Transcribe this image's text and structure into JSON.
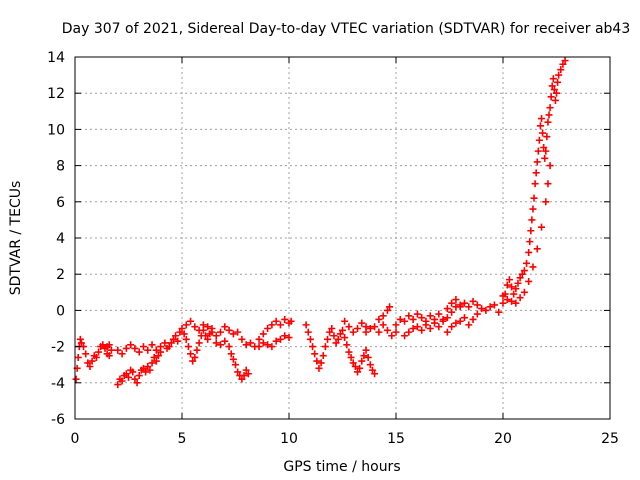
{
  "chart_data": {
    "type": "scatter",
    "title": "Day 307 of 2021, Sidereal Day-to-day VTEC variation (SDTVAR) for receiver ab43",
    "xlabel": "GPS time / hours",
    "ylabel": "SDTVAR / TECUs",
    "xlim": [
      0,
      25
    ],
    "ylim": [
      -6,
      14
    ],
    "xticks": [
      0,
      5,
      10,
      15,
      20,
      25
    ],
    "yticks": [
      -6,
      -4,
      -2,
      0,
      2,
      4,
      6,
      8,
      10,
      12,
      14
    ],
    "grid": true,
    "marker": "+",
    "series_color": "#ff0000",
    "series": [
      {
        "name": "SDTVAR",
        "points": [
          [
            0.05,
            -3.8
          ],
          [
            0.1,
            -3.2
          ],
          [
            0.15,
            -2.6
          ],
          [
            0.2,
            -2.0
          ],
          [
            0.25,
            -1.6
          ],
          [
            0.3,
            -1.8
          ],
          [
            0.4,
            -2.0
          ],
          [
            0.5,
            -2.4
          ],
          [
            0.6,
            -2.9
          ],
          [
            0.7,
            -3.1
          ],
          [
            0.8,
            -2.8
          ],
          [
            0.9,
            -2.5
          ],
          [
            1.0,
            -2.6
          ],
          [
            1.1,
            -2.3
          ],
          [
            1.2,
            -2.0
          ],
          [
            1.3,
            -1.9
          ],
          [
            1.4,
            -2.1
          ],
          [
            1.5,
            -2.0
          ],
          [
            1.6,
            -1.9
          ],
          [
            1.7,
            -2.2
          ],
          [
            1.6,
            -2.5
          ],
          [
            1.5,
            -2.4
          ],
          [
            2.0,
            -4.1
          ],
          [
            2.1,
            -3.8
          ],
          [
            2.2,
            -3.9
          ],
          [
            2.3,
            -3.6
          ],
          [
            2.4,
            -3.5
          ],
          [
            2.5,
            -3.7
          ],
          [
            2.6,
            -3.3
          ],
          [
            2.7,
            -3.4
          ],
          [
            2.8,
            -3.8
          ],
          [
            2.9,
            -4.0
          ],
          [
            3.0,
            -3.6
          ],
          [
            3.1,
            -3.3
          ],
          [
            3.2,
            -3.2
          ],
          [
            3.3,
            -3.4
          ],
          [
            3.4,
            -3.1
          ],
          [
            3.5,
            -3.3
          ],
          [
            3.6,
            -2.9
          ],
          [
            3.7,
            -2.6
          ],
          [
            3.8,
            -2.8
          ],
          [
            3.9,
            -2.5
          ],
          [
            4.0,
            -2.3
          ],
          [
            2.0,
            -2.2
          ],
          [
            2.2,
            -2.4
          ],
          [
            2.4,
            -2.1
          ],
          [
            2.6,
            -1.9
          ],
          [
            2.8,
            -2.1
          ],
          [
            3.0,
            -2.3
          ],
          [
            3.2,
            -2.0
          ],
          [
            3.4,
            -2.2
          ],
          [
            3.6,
            -1.9
          ],
          [
            3.8,
            -2.2
          ],
          [
            4.0,
            -2.0
          ],
          [
            4.2,
            -1.8
          ],
          [
            4.3,
            -2.1
          ],
          [
            4.4,
            -2.0
          ],
          [
            4.5,
            -1.8
          ],
          [
            4.6,
            -1.6
          ],
          [
            4.7,
            -1.4
          ],
          [
            4.8,
            -1.7
          ],
          [
            4.9,
            -1.2
          ],
          [
            5.0,
            -1.0
          ],
          [
            5.1,
            -1.3
          ],
          [
            5.2,
            -1.6
          ],
          [
            5.3,
            -2.0
          ],
          [
            5.4,
            -2.4
          ],
          [
            5.5,
            -2.8
          ],
          [
            5.6,
            -2.6
          ],
          [
            5.7,
            -2.2
          ],
          [
            5.8,
            -1.8
          ],
          [
            5.9,
            -1.4
          ],
          [
            6.0,
            -1.1
          ],
          [
            6.1,
            -1.4
          ],
          [
            6.2,
            -1.6
          ],
          [
            6.3,
            -1.3
          ],
          [
            6.4,
            -1.0
          ],
          [
            5.2,
            -0.8
          ],
          [
            5.4,
            -0.6
          ],
          [
            5.6,
            -0.9
          ],
          [
            5.8,
            -1.1
          ],
          [
            6.0,
            -0.8
          ],
          [
            6.2,
            -0.9
          ],
          [
            6.4,
            -1.2
          ],
          [
            6.6,
            -1.4
          ],
          [
            6.8,
            -1.2
          ],
          [
            7.0,
            -0.9
          ],
          [
            7.2,
            -1.1
          ],
          [
            7.4,
            -1.3
          ],
          [
            6.6,
            -1.8
          ],
          [
            6.8,
            -1.9
          ],
          [
            7.0,
            -1.7
          ],
          [
            7.2,
            -2.0
          ],
          [
            7.3,
            -2.4
          ],
          [
            7.4,
            -2.7
          ],
          [
            7.5,
            -3.0
          ],
          [
            7.6,
            -3.4
          ],
          [
            7.7,
            -3.6
          ],
          [
            7.8,
            -3.8
          ],
          [
            7.9,
            -3.6
          ],
          [
            8.0,
            -3.3
          ],
          [
            8.1,
            -3.5
          ],
          [
            7.6,
            -1.2
          ],
          [
            7.8,
            -1.6
          ],
          [
            8.0,
            -1.9
          ],
          [
            8.2,
            -1.8
          ],
          [
            8.4,
            -2.0
          ],
          [
            8.6,
            -1.6
          ],
          [
            8.8,
            -1.3
          ],
          [
            9.0,
            -1.0
          ],
          [
            9.2,
            -0.8
          ],
          [
            9.4,
            -0.6
          ],
          [
            9.6,
            -0.8
          ],
          [
            9.8,
            -0.5
          ],
          [
            10.0,
            -0.7
          ],
          [
            10.1,
            -0.6
          ],
          [
            8.6,
            -2.0
          ],
          [
            8.8,
            -1.8
          ],
          [
            9.0,
            -1.9
          ],
          [
            9.2,
            -2.0
          ],
          [
            9.4,
            -1.7
          ],
          [
            9.6,
            -1.6
          ],
          [
            9.8,
            -1.4
          ],
          [
            10.0,
            -1.5
          ],
          [
            10.8,
            -0.8
          ],
          [
            10.9,
            -1.2
          ],
          [
            11.0,
            -1.6
          ],
          [
            11.1,
            -2.0
          ],
          [
            11.2,
            -2.4
          ],
          [
            11.3,
            -2.8
          ],
          [
            11.4,
            -3.2
          ],
          [
            11.5,
            -2.9
          ],
          [
            11.6,
            -2.5
          ],
          [
            11.7,
            -2.0
          ],
          [
            11.8,
            -1.6
          ],
          [
            11.9,
            -1.2
          ],
          [
            12.0,
            -1.0
          ],
          [
            12.1,
            -1.4
          ],
          [
            12.2,
            -1.8
          ],
          [
            12.3,
            -1.6
          ],
          [
            12.4,
            -1.3
          ],
          [
            12.5,
            -1.1
          ],
          [
            12.6,
            -1.5
          ],
          [
            12.7,
            -1.9
          ],
          [
            12.8,
            -2.3
          ],
          [
            12.9,
            -2.6
          ],
          [
            13.0,
            -2.9
          ],
          [
            13.1,
            -3.1
          ],
          [
            13.2,
            -3.4
          ],
          [
            13.3,
            -3.2
          ],
          [
            13.4,
            -2.8
          ],
          [
            13.5,
            -2.5
          ],
          [
            13.6,
            -2.2
          ],
          [
            13.7,
            -2.6
          ],
          [
            13.8,
            -3.0
          ],
          [
            13.9,
            -3.3
          ],
          [
            14.0,
            -3.5
          ],
          [
            13.6,
            -1.2
          ],
          [
            13.8,
            -1.0
          ],
          [
            14.0,
            -0.9
          ],
          [
            14.2,
            -1.2
          ],
          [
            14.4,
            -0.8
          ],
          [
            14.6,
            -1.1
          ],
          [
            14.8,
            -1.4
          ],
          [
            15.0,
            -1.2
          ],
          [
            12.6,
            -0.6
          ],
          [
            12.8,
            -0.9
          ],
          [
            13.0,
            -1.2
          ],
          [
            13.2,
            -1.0
          ],
          [
            13.4,
            -0.7
          ],
          [
            13.6,
            -0.9
          ],
          [
            14.2,
            -0.5
          ],
          [
            14.4,
            -0.3
          ],
          [
            14.6,
            0.0
          ],
          [
            14.7,
            0.2
          ],
          [
            15.0,
            -0.8
          ],
          [
            15.2,
            -0.5
          ],
          [
            15.4,
            -0.6
          ],
          [
            15.6,
            -0.3
          ],
          [
            15.8,
            -0.5
          ],
          [
            16.0,
            -0.2
          ],
          [
            16.2,
            -0.4
          ],
          [
            16.4,
            -0.6
          ],
          [
            16.6,
            -0.3
          ],
          [
            16.8,
            -0.5
          ],
          [
            17.0,
            -0.2
          ],
          [
            17.2,
            -0.5
          ],
          [
            17.4,
            0.1
          ],
          [
            17.6,
            0.4
          ],
          [
            17.8,
            0.6
          ],
          [
            18.0,
            0.2
          ],
          [
            18.2,
            -0.4
          ],
          [
            18.4,
            -0.8
          ],
          [
            18.6,
            -0.5
          ],
          [
            18.8,
            -0.2
          ],
          [
            15.4,
            -1.4
          ],
          [
            15.6,
            -1.2
          ],
          [
            15.8,
            -1.0
          ],
          [
            16.0,
            -0.9
          ],
          [
            16.2,
            -1.1
          ],
          [
            16.4,
            -0.8
          ],
          [
            16.6,
            -1.0
          ],
          [
            16.8,
            -0.7
          ],
          [
            17.0,
            -0.9
          ],
          [
            17.2,
            -0.6
          ],
          [
            17.4,
            -0.4
          ],
          [
            17.6,
            -0.1
          ],
          [
            17.8,
            0.2
          ],
          [
            18.0,
            0.3
          ],
          [
            18.2,
            0.4
          ],
          [
            18.4,
            0.2
          ],
          [
            18.6,
            0.5
          ],
          [
            18.8,
            0.3
          ],
          [
            19.0,
            0.1
          ],
          [
            17.4,
            -1.2
          ],
          [
            17.6,
            -0.9
          ],
          [
            17.8,
            -0.7
          ],
          [
            18.0,
            -0.6
          ],
          [
            19.2,
            0.0
          ],
          [
            19.4,
            0.2
          ],
          [
            19.6,
            0.3
          ],
          [
            19.8,
            -0.1
          ],
          [
            20.0,
            0.4
          ],
          [
            20.1,
            0.9
          ],
          [
            20.2,
            1.4
          ],
          [
            20.3,
            1.7
          ],
          [
            20.4,
            1.3
          ],
          [
            20.5,
            0.9
          ],
          [
            20.6,
            1.2
          ],
          [
            20.7,
            1.5
          ],
          [
            20.8,
            1.8
          ],
          [
            20.9,
            2.0
          ],
          [
            21.0,
            2.2
          ],
          [
            21.1,
            2.6
          ],
          [
            21.2,
            3.2
          ],
          [
            21.25,
            3.8
          ],
          [
            21.3,
            4.4
          ],
          [
            21.35,
            5.0
          ],
          [
            21.4,
            5.6
          ],
          [
            21.45,
            6.2
          ],
          [
            21.5,
            7.0
          ],
          [
            21.55,
            7.6
          ],
          [
            21.6,
            8.2
          ],
          [
            21.65,
            8.8
          ],
          [
            21.7,
            9.4
          ],
          [
            21.75,
            10.2
          ],
          [
            21.8,
            10.6
          ],
          [
            21.85,
            9.8
          ],
          [
            21.9,
            9.0
          ],
          [
            21.95,
            8.4
          ],
          [
            22.0,
            8.8
          ],
          [
            22.05,
            9.6
          ],
          [
            22.1,
            10.4
          ],
          [
            22.15,
            10.8
          ],
          [
            22.2,
            11.2
          ],
          [
            22.25,
            11.8
          ],
          [
            22.3,
            12.4
          ],
          [
            22.35,
            12.8
          ],
          [
            22.4,
            12.2
          ],
          [
            22.45,
            11.6
          ],
          [
            22.5,
            12.0
          ],
          [
            22.55,
            12.6
          ],
          [
            22.6,
            13.0
          ],
          [
            22.7,
            13.3
          ],
          [
            22.8,
            13.6
          ],
          [
            22.9,
            13.8
          ],
          [
            20.0,
            0.8
          ],
          [
            20.2,
            0.6
          ],
          [
            20.4,
            0.5
          ],
          [
            20.6,
            0.4
          ],
          [
            20.8,
            0.7
          ],
          [
            21.0,
            1.0
          ],
          [
            21.2,
            1.6
          ],
          [
            21.4,
            2.4
          ],
          [
            21.6,
            3.4
          ],
          [
            21.8,
            4.6
          ],
          [
            22.0,
            6.0
          ],
          [
            22.1,
            7.0
          ],
          [
            22.2,
            8.0
          ]
        ]
      }
    ]
  }
}
